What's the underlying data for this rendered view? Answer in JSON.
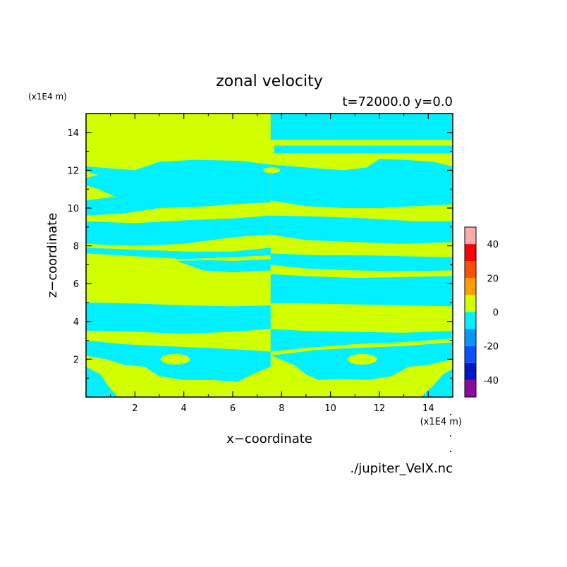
{
  "chart_data": {
    "type": "heatmap",
    "title": "zonal velocity",
    "subtitle": "t=72000.0 y=0.0",
    "xlabel": "x−coordinate",
    "ylabel": "z−coordinate",
    "x_unit": "(x1E4 m)",
    "y_unit": "(x1E4 m)",
    "source": "./jupiter_VelX.nc",
    "xlim": [
      0,
      15
    ],
    "ylim": [
      0,
      15
    ],
    "xticks": [
      "2",
      "4",
      "6",
      "8",
      "10",
      "12",
      "14"
    ],
    "yticks": [
      "2",
      "4",
      "6",
      "8",
      "10",
      "12",
      "14"
    ],
    "colorbar": {
      "levels": [
        -50,
        -40,
        -30,
        -20,
        -10,
        0,
        10,
        20,
        30,
        40,
        50
      ],
      "colors": [
        "#8c0aa0",
        "#0014c8",
        "#0a50ff",
        "#0a96ff",
        "#00f0ff",
        "#d2ff00",
        "#ffa000",
        "#ff5000",
        "#ff0000",
        "#ffaaaa"
      ],
      "tick_labels": [
        "-40",
        "-20",
        "0",
        "20",
        "40"
      ],
      "tick_values": [
        -40,
        -20,
        0,
        20,
        40
      ]
    },
    "regions": {
      "negative_color": "#00f0ff",
      "positive_color": "#d2ff00"
    }
  }
}
